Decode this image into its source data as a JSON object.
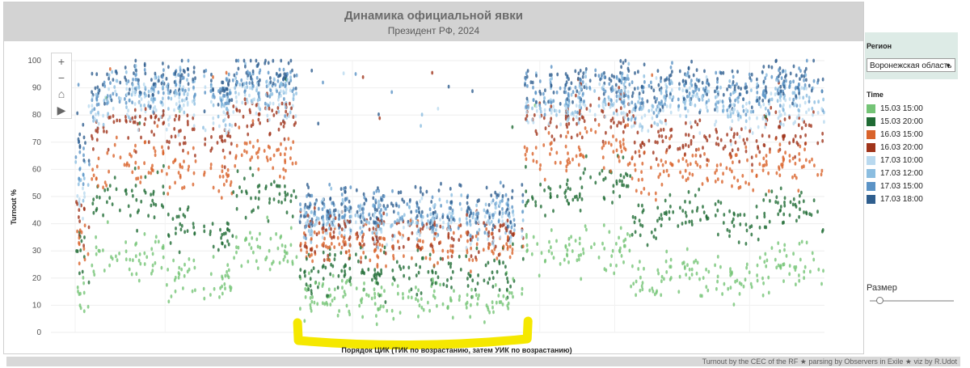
{
  "header": {
    "title": "Динамика официальной явки",
    "subtitle": "Президент РФ, 2024"
  },
  "toolbar": {
    "zoom_in": "+",
    "zoom_out": "−",
    "home": "⌂",
    "play": "▶"
  },
  "filter": {
    "label": "Регион",
    "selected": "Воронежская область"
  },
  "legend": {
    "title": "Time",
    "items": [
      {
        "label": "15.03 15:00",
        "color": "#74c476"
      },
      {
        "label": "15.03 20:00",
        "color": "#1f6b34"
      },
      {
        "label": "16.03 15:00",
        "color": "#d9632b"
      },
      {
        "label": "16.03 20:00",
        "color": "#a0341b"
      },
      {
        "label": "17.03 10:00",
        "color": "#b9d9ef"
      },
      {
        "label": "17.03 12:00",
        "color": "#8bbde0"
      },
      {
        "label": "17.03 15:00",
        "color": "#5b93c6"
      },
      {
        "label": "17.03 18:00",
        "color": "#2f5e8e"
      }
    ]
  },
  "size_control": {
    "label": "Размер"
  },
  "footer": {
    "credit": "Turnout by the CEC of the RF ★ parsing by Observers in Exile ★ viz by R.Udot"
  },
  "chart_data": {
    "type": "scatter",
    "xlabel": "Порядок ЦИК (ТИК по возрастанию, затем УИК по возрастанию)",
    "ylabel": "Turnout %",
    "ylim": [
      0,
      100
    ],
    "yticks": [
      0,
      10,
      20,
      30,
      40,
      50,
      60,
      70,
      80,
      90,
      100
    ],
    "grid": true,
    "legend_position": "right",
    "segments": [
      {
        "x": [
          0.0,
          0.022
        ],
        "series_means": [
          12,
          26,
          32,
          40,
          48,
          55,
          62,
          68
        ]
      },
      {
        "x": [
          0.022,
          0.045
        ],
        "series_means": [
          30,
          50,
          60,
          75,
          82,
          85,
          88,
          90
        ]
      },
      {
        "x": [
          0.045,
          0.12
        ],
        "series_means": [
          28,
          50,
          65,
          78,
          85,
          88,
          90,
          92
        ]
      },
      {
        "x": [
          0.12,
          0.21
        ],
        "series_means": [
          20,
          38,
          58,
          72,
          82,
          86,
          89,
          92
        ]
      },
      {
        "x": [
          0.21,
          0.3
        ],
        "series_means": [
          30,
          50,
          65,
          78,
          85,
          88,
          91,
          94
        ]
      },
      {
        "x": [
          0.3,
          0.6
        ],
        "series_means": [
          13,
          22,
          32,
          36,
          40,
          42,
          44,
          46
        ]
      },
      {
        "x": [
          0.6,
          0.68
        ],
        "series_means": [
          30,
          52,
          66,
          78,
          82,
          85,
          88,
          91
        ]
      },
      {
        "x": [
          0.68,
          0.74
        ],
        "series_means": [
          32,
          56,
          68,
          80,
          85,
          88,
          90,
          93
        ]
      },
      {
        "x": [
          0.74,
          0.78
        ],
        "series_means": [
          20,
          40,
          58,
          70,
          78,
          83,
          87,
          90
        ]
      },
      {
        "x": [
          0.78,
          0.86
        ],
        "series_means": [
          22,
          45,
          62,
          72,
          84,
          88,
          90,
          92
        ]
      },
      {
        "x": [
          0.86,
          0.92
        ],
        "series_means": [
          20,
          42,
          60,
          70,
          80,
          84,
          88,
          90
        ]
      },
      {
        "x": [
          0.92,
          1.0
        ],
        "series_means": [
          25,
          46,
          62,
          74,
          82,
          86,
          89,
          92
        ]
      }
    ],
    "series": [
      {
        "name": "15.03 15:00"
      },
      {
        "name": "15.03 20:00"
      },
      {
        "name": "16.03 15:00"
      },
      {
        "name": "16.03 20:00"
      },
      {
        "name": "17.03 10:00"
      },
      {
        "name": "17.03 12:00"
      },
      {
        "name": "17.03 15:00"
      },
      {
        "name": "17.03 18:00"
      }
    ],
    "annotation": {
      "type": "highlight-bracket",
      "color": "#f5e800",
      "x": [
        0.3,
        0.6
      ]
    }
  }
}
